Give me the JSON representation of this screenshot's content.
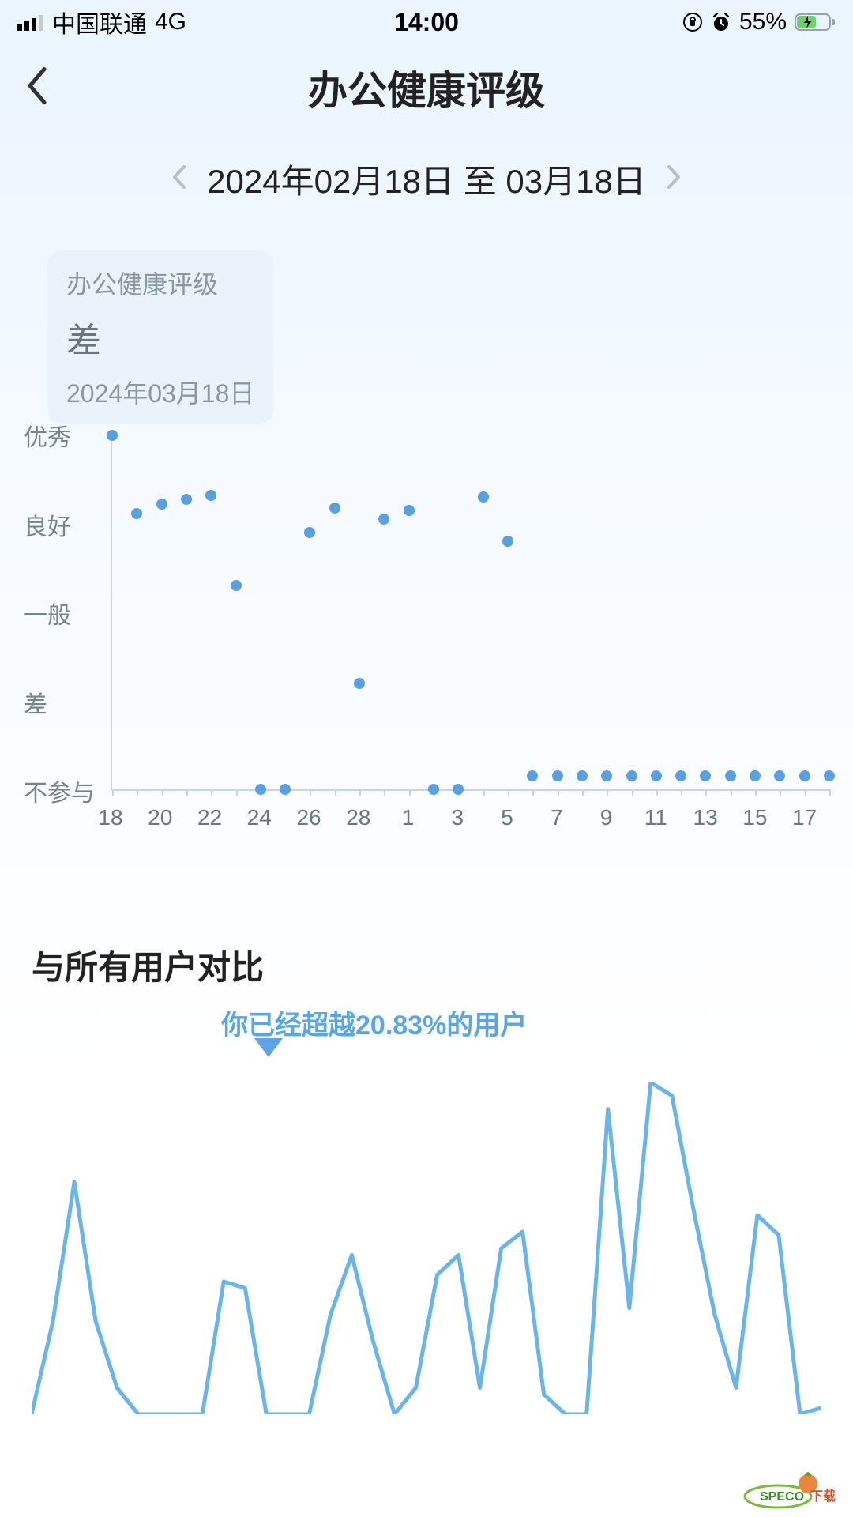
{
  "status": {
    "carrier": "中国联通",
    "network": "4G",
    "time": "14:00",
    "battery_pct": "55%",
    "signal_bars": 3
  },
  "nav": {
    "title": "办公健康评级"
  },
  "date_range": {
    "text": "2024年02月18日 至 03月18日"
  },
  "callout": {
    "title": "办公健康评级",
    "value": "差",
    "date": "2024年03月18日"
  },
  "scatter": {
    "type": "scatter",
    "dot_color": "#5a9fe0",
    "y_levels": [
      "优秀",
      "良好",
      "一般",
      "差",
      "不参与"
    ],
    "x_ticks": [
      "18",
      "19",
      "20",
      "21",
      "22",
      "23",
      "24",
      "25",
      "26",
      "27",
      "28",
      "29",
      "1",
      "2",
      "3",
      "4",
      "5",
      "6",
      "7",
      "8",
      "9",
      "10",
      "11",
      "12",
      "13",
      "14",
      "15",
      "16",
      "17",
      "18"
    ],
    "x_labels_shown": [
      "18",
      "20",
      "22",
      "24",
      "26",
      "28",
      "1",
      "3",
      "5",
      "7",
      "9",
      "11",
      "13",
      "15",
      "17"
    ],
    "points": [
      {
        "x": "18",
        "y": 4
      },
      {
        "x": "19",
        "y": 3.12
      },
      {
        "x": "20",
        "y": 3.22
      },
      {
        "x": "21",
        "y": 3.28
      },
      {
        "x": "22",
        "y": 3.32
      },
      {
        "x": "23",
        "y": 2.3
      },
      {
        "x": "24",
        "y": 0
      },
      {
        "x": "25",
        "y": 0
      },
      {
        "x": "26",
        "y": 2.9
      },
      {
        "x": "27",
        "y": 3.18
      },
      {
        "x": "28",
        "y": 1.2
      },
      {
        "x": "29",
        "y": 3.05
      },
      {
        "x": "1",
        "y": 3.15
      },
      {
        "x": "2",
        "y": 0
      },
      {
        "x": "3",
        "y": 0
      },
      {
        "x": "4",
        "y": 3.3
      },
      {
        "x": "5",
        "y": 2.8
      },
      {
        "x": "6",
        "y": 0.15
      },
      {
        "x": "7",
        "y": 0.15
      },
      {
        "x": "8",
        "y": 0.15
      },
      {
        "x": "9",
        "y": 0.15
      },
      {
        "x": "10",
        "y": 0.15
      },
      {
        "x": "11",
        "y": 0.15
      },
      {
        "x": "12",
        "y": 0.15
      },
      {
        "x": "13",
        "y": 0.15
      },
      {
        "x": "14",
        "y": 0.15
      },
      {
        "x": "15",
        "y": 0.15
      },
      {
        "x": "16",
        "y": 0.15
      },
      {
        "x": "17",
        "y": 0.15
      },
      {
        "x": "18b",
        "y": 0.15
      }
    ],
    "y_range": [
      0,
      4
    ],
    "axis_color": "#cbd4dc",
    "label_color": "#77838f",
    "label_fontsize": 30
  },
  "compare": {
    "heading": "与所有用户对比",
    "label_text": "你已经超越20.83%的用户",
    "label_color": "#5aa5e8",
    "marker_pct": 0.3,
    "line_color": "#6ab4ed",
    "line": {
      "type": "line",
      "y_range": [
        0,
        100
      ],
      "values": [
        0,
        28,
        70,
        28,
        8,
        0,
        0,
        0,
        0,
        40,
        38,
        0,
        0,
        0,
        30,
        48,
        22,
        0,
        8,
        42,
        48,
        8,
        50,
        55,
        6,
        0,
        0,
        92,
        32,
        100,
        96,
        62,
        30,
        8,
        60,
        54,
        0,
        2
      ]
    }
  },
  "watermark": {
    "text": "SPECO下载"
  },
  "colors": {
    "bg_top": "#eaf5ff",
    "text_primary": "#222222",
    "text_muted": "#8a97a4"
  }
}
